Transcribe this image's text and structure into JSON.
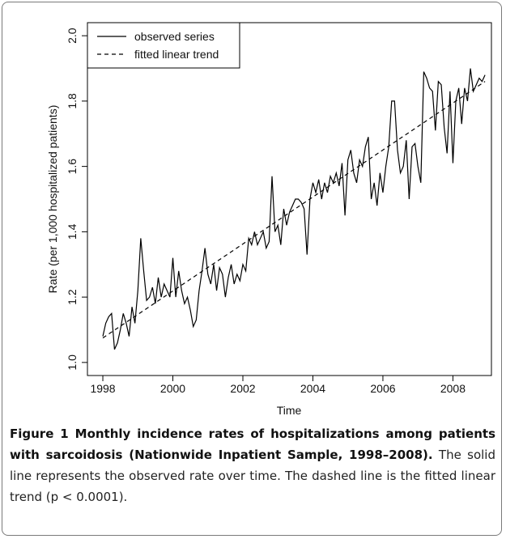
{
  "chart_data": {
    "type": "line",
    "y_label": "Rate (per 1,000 hospitalized patients)",
    "x_label": "Time",
    "xlim": [
      1997.56,
      2009.1
    ],
    "ylim": [
      0.96,
      2.04
    ],
    "xticks": [
      1998,
      2000,
      2002,
      2004,
      2006,
      2008
    ],
    "yticks": [
      {
        "value": 1,
        "label": "1.0"
      },
      1.2,
      1.4,
      1.6,
      1.8,
      {
        "value": 2,
        "label": "2.0"
      }
    ],
    "legend": "topleft",
    "series": [
      {
        "name": "observed series",
        "color": "#000000",
        "dash": "solid",
        "x": [
          1998,
          1998.083,
          1998.167,
          1998.25,
          1998.333,
          1998.417,
          1998.5,
          1998.583,
          1998.667,
          1998.75,
          1998.833,
          1998.917,
          1999,
          1999.083,
          1999.167,
          1999.25,
          1999.333,
          1999.417,
          1999.5,
          1999.583,
          1999.667,
          1999.75,
          1999.833,
          1999.917,
          2000,
          2000.083,
          2000.167,
          2000.25,
          2000.333,
          2000.417,
          2000.5,
          2000.583,
          2000.667,
          2000.75,
          2000.833,
          2000.917,
          2001,
          2001.083,
          2001.167,
          2001.25,
          2001.333,
          2001.417,
          2001.5,
          2001.583,
          2001.667,
          2001.75,
          2001.833,
          2001.917,
          2002,
          2002.083,
          2002.167,
          2002.25,
          2002.333,
          2002.417,
          2002.5,
          2002.583,
          2002.667,
          2002.75,
          2002.833,
          2002.917,
          2003,
          2003.083,
          2003.167,
          2003.25,
          2003.333,
          2003.417,
          2003.5,
          2003.583,
          2003.667,
          2003.75,
          2003.833,
          2003.917,
          2004,
          2004.083,
          2004.167,
          2004.25,
          2004.333,
          2004.417,
          2004.5,
          2004.583,
          2004.667,
          2004.75,
          2004.833,
          2004.917,
          2005,
          2005.083,
          2005.167,
          2005.25,
          2005.333,
          2005.417,
          2005.5,
          2005.583,
          2005.667,
          2005.75,
          2005.833,
          2005.917,
          2006,
          2006.083,
          2006.167,
          2006.25,
          2006.333,
          2006.417,
          2006.5,
          2006.583,
          2006.667,
          2006.75,
          2006.833,
          2006.917,
          2007,
          2007.083,
          2007.167,
          2007.25,
          2007.333,
          2007.417,
          2007.5,
          2007.583,
          2007.667,
          2007.75,
          2007.833,
          2007.917,
          2008,
          2008.083,
          2008.167,
          2008.25,
          2008.333,
          2008.417,
          2008.5,
          2008.583,
          2008.667,
          2008.75,
          2008.833,
          2008.917
        ],
        "values": [
          1.08,
          1.12,
          1.14,
          1.15,
          1.04,
          1.06,
          1.1,
          1.15,
          1.12,
          1.08,
          1.17,
          1.12,
          1.22,
          1.38,
          1.28,
          1.19,
          1.2,
          1.23,
          1.18,
          1.26,
          1.2,
          1.24,
          1.22,
          1.2,
          1.32,
          1.2,
          1.28,
          1.22,
          1.18,
          1.2,
          1.16,
          1.11,
          1.13,
          1.22,
          1.28,
          1.35,
          1.27,
          1.24,
          1.3,
          1.22,
          1.29,
          1.27,
          1.2,
          1.26,
          1.3,
          1.24,
          1.27,
          1.25,
          1.3,
          1.28,
          1.38,
          1.36,
          1.4,
          1.36,
          1.38,
          1.4,
          1.35,
          1.37,
          1.57,
          1.4,
          1.42,
          1.36,
          1.47,
          1.42,
          1.46,
          1.48,
          1.5,
          1.5,
          1.49,
          1.47,
          1.33,
          1.5,
          1.55,
          1.52,
          1.56,
          1.5,
          1.55,
          1.52,
          1.57,
          1.55,
          1.58,
          1.54,
          1.61,
          1.45,
          1.62,
          1.65,
          1.58,
          1.55,
          1.62,
          1.6,
          1.66,
          1.69,
          1.5,
          1.55,
          1.48,
          1.58,
          1.52,
          1.6,
          1.66,
          1.8,
          1.8,
          1.65,
          1.58,
          1.6,
          1.68,
          1.5,
          1.66,
          1.67,
          1.6,
          1.55,
          1.89,
          1.87,
          1.84,
          1.83,
          1.71,
          1.86,
          1.85,
          1.72,
          1.64,
          1.83,
          1.61,
          1.8,
          1.84,
          1.73,
          1.84,
          1.8,
          1.9,
          1.83,
          1.85,
          1.87,
          1.86,
          1.88
        ]
      },
      {
        "name": "fitted linear trend",
        "color": "#000000",
        "dash": "dashed",
        "x": [
          1998,
          2008.917
        ],
        "values": [
          1.075,
          1.86
        ]
      }
    ]
  },
  "caption": {
    "label": "Figure 1 Monthly incidence rates of hospitalizations among patients with sarcoidosis (Nationwide Inpatient Sample, 1998–2008).",
    "text": "The solid line represents the observed rate over time. The dashed line is the fitted linear trend (p < 0.0001)."
  }
}
